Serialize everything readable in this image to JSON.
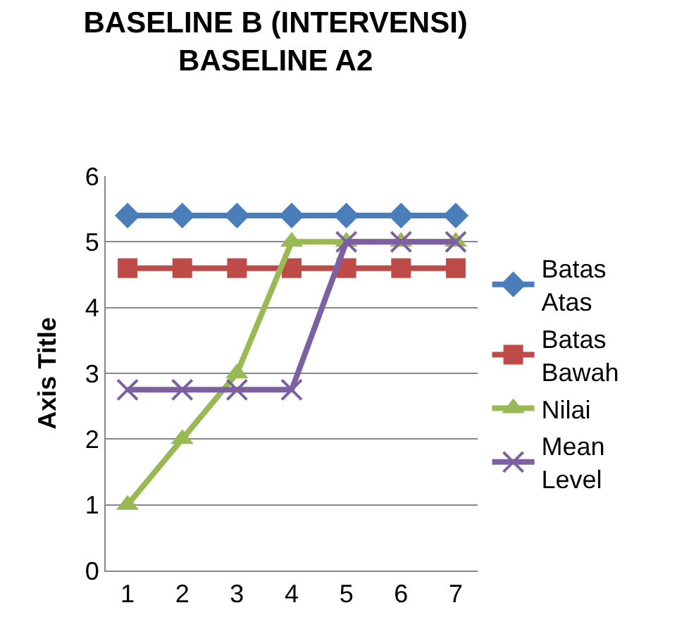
{
  "chart_data": {
    "type": "line",
    "title": "BASELINE B (INTERVENSI) BASELINE A2",
    "ylabel": "Axis Title",
    "categories": [
      "1",
      "2",
      "3",
      "4",
      "5",
      "6",
      "7"
    ],
    "ylim": [
      0,
      6
    ],
    "yticks": [
      0,
      1,
      2,
      3,
      4,
      5,
      6
    ],
    "grid": "y",
    "legend": "right",
    "series": [
      {
        "name": "Batas Atas",
        "color": "#4a7ebb",
        "marker": "diamond",
        "values": [
          5.4,
          5.4,
          5.4,
          5.4,
          5.4,
          5.4,
          5.4
        ]
      },
      {
        "name": "Batas Bawah",
        "color": "#be4b48",
        "marker": "square",
        "values": [
          4.6,
          4.6,
          4.6,
          4.6,
          4.6,
          4.6,
          4.6
        ]
      },
      {
        "name": "Nilai",
        "color": "#98b954",
        "marker": "triangle",
        "values": [
          1,
          2,
          3,
          5,
          5,
          5,
          5
        ]
      },
      {
        "name": "Mean Level",
        "color": "#7d60a0",
        "marker": "cross",
        "values": [
          2.75,
          2.75,
          2.75,
          2.75,
          5,
          5,
          5
        ]
      }
    ]
  }
}
